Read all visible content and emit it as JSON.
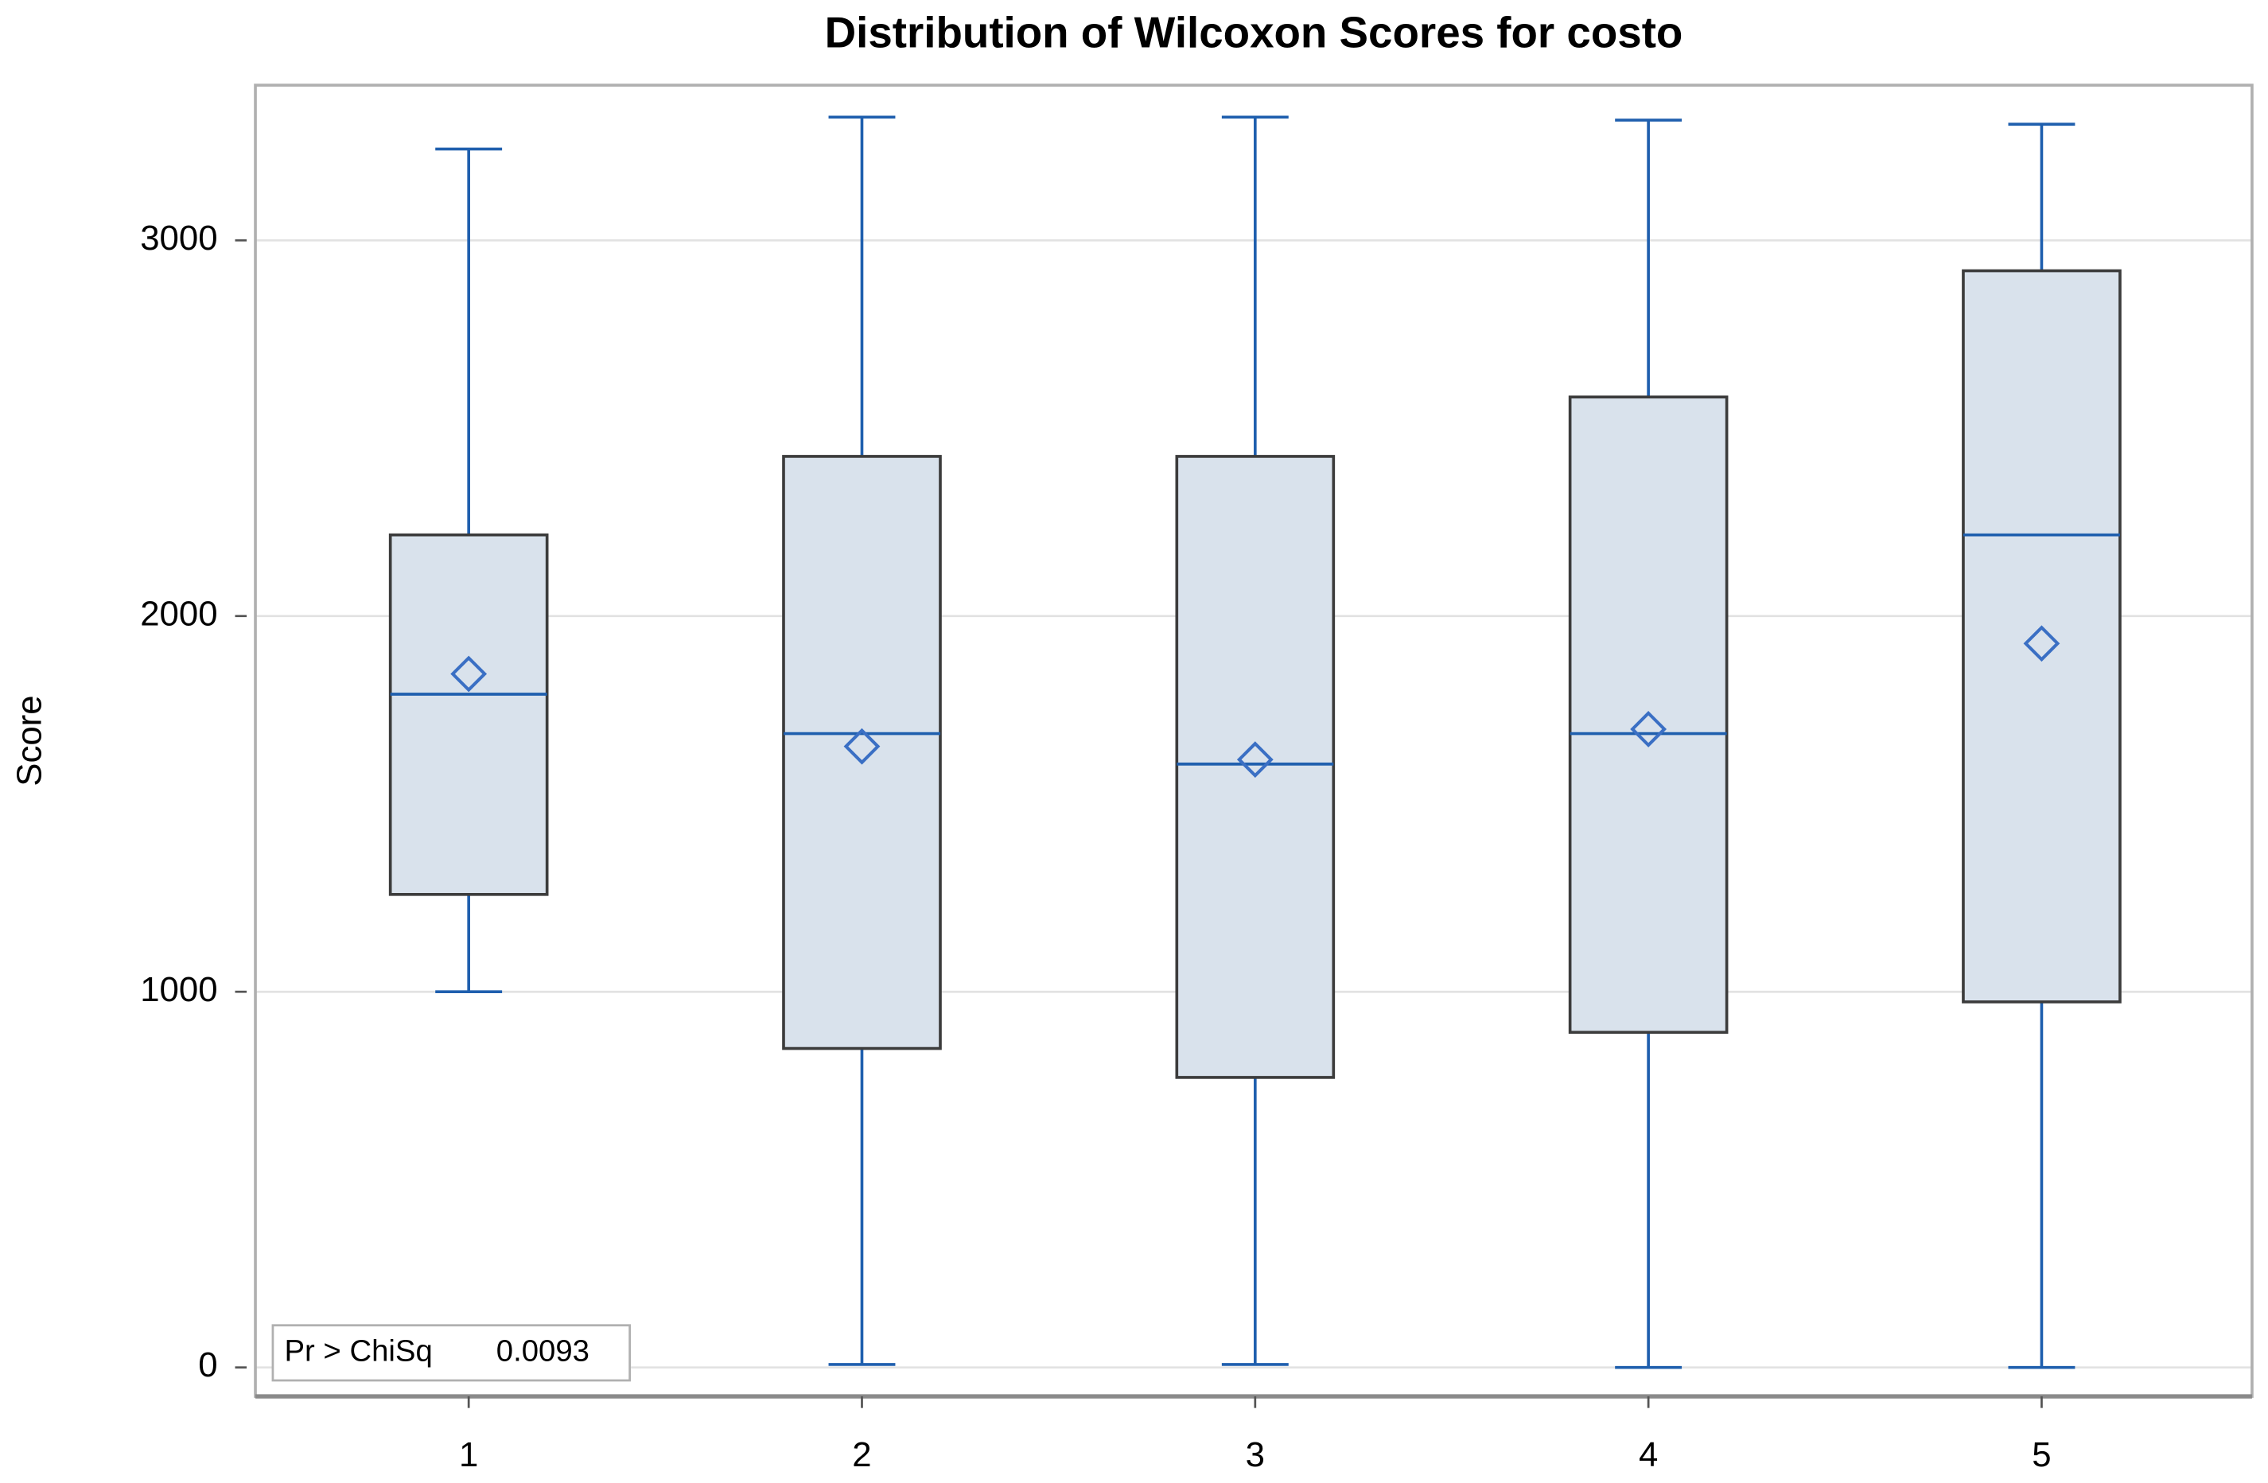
{
  "chart_data": {
    "type": "box",
    "title": "Distribution of Wilcoxon Scores for costo",
    "y_label": "Score",
    "categories": [
      "1",
      "2",
      "3",
      "4",
      "5"
    ],
    "stats": {
      "max": [
        3243,
        3328,
        3328,
        3320,
        3309
      ],
      "q3": [
        2216,
        2425,
        2425,
        2583,
        2919
      ],
      "median": [
        1792,
        1687,
        1606,
        1687,
        2216
      ],
      "q1": [
        1259,
        849,
        772,
        892,
        973
      ],
      "min": [
        1000,
        8,
        8,
        0,
        0
      ],
      "mean": [
        1846,
        1653,
        1618,
        1699,
        1927
      ]
    },
    "box_color": "#d9e2ec",
    "whisker_color": "#1f5fae",
    "ylim": [
      -77,
      3413
    ],
    "yticks": [
      0,
      1000,
      2000,
      3000
    ],
    "grid": true,
    "annotation": {
      "label": "Pr > ChiSq",
      "value": 0.0093
    }
  }
}
